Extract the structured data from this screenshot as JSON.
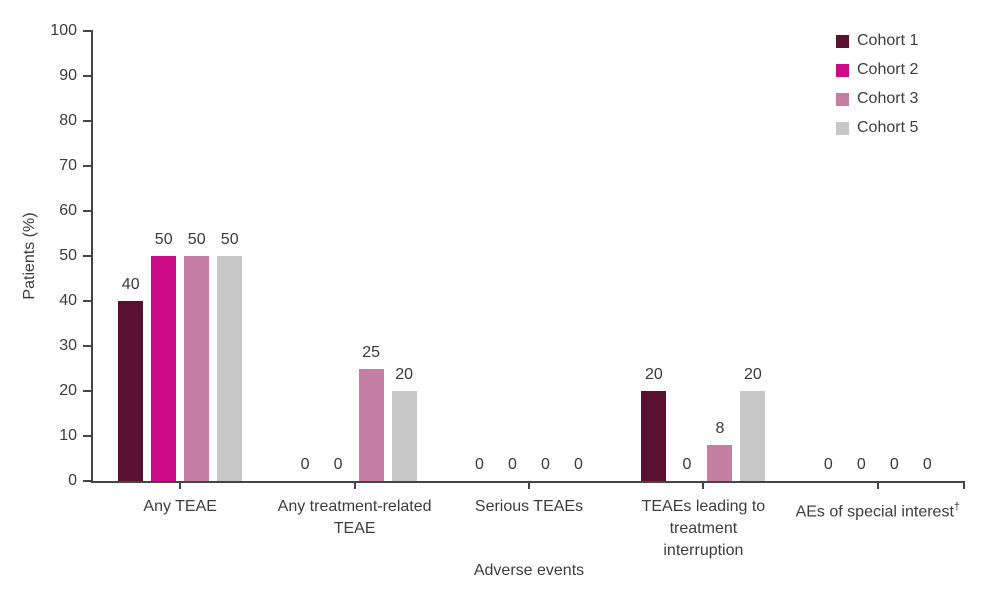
{
  "figure": {
    "background": "#ffffff",
    "axis_color": "#454545",
    "text_color": "#3c3c3c"
  },
  "chart_data": {
    "type": "bar",
    "title": "",
    "xlabel": "Adverse events",
    "ylabel": "Patients (%)",
    "ylim": [
      0,
      100
    ],
    "ytick_step": 10,
    "yticks": [
      0,
      10,
      20,
      30,
      40,
      50,
      60,
      70,
      80,
      90,
      100
    ],
    "grid": false,
    "legend_position": "top-right",
    "value_labels": true,
    "categories": [
      {
        "lines": [
          "Any TEAE"
        ]
      },
      {
        "lines": [
          "Any treatment-related",
          "TEAE"
        ]
      },
      {
        "lines": [
          "Serious TEAEs"
        ]
      },
      {
        "lines": [
          "TEAEs leading to",
          "treatment",
          "interruption"
        ]
      },
      {
        "lines": [
          "AEs of special interest"
        ],
        "superscript": "†"
      }
    ],
    "series": [
      {
        "name": "Cohort 1",
        "color": "#5a1130",
        "values": [
          40,
          0,
          0,
          20,
          0
        ]
      },
      {
        "name": "Cohort 2",
        "color": "#cc0a87",
        "values": [
          50,
          0,
          0,
          0,
          0
        ]
      },
      {
        "name": "Cohort 3",
        "color": "#c57fa5",
        "values": [
          50,
          25,
          0,
          8,
          0
        ]
      },
      {
        "name": "Cohort 5",
        "color": "#c7c7c7",
        "values": [
          50,
          20,
          0,
          20,
          0
        ]
      }
    ]
  }
}
